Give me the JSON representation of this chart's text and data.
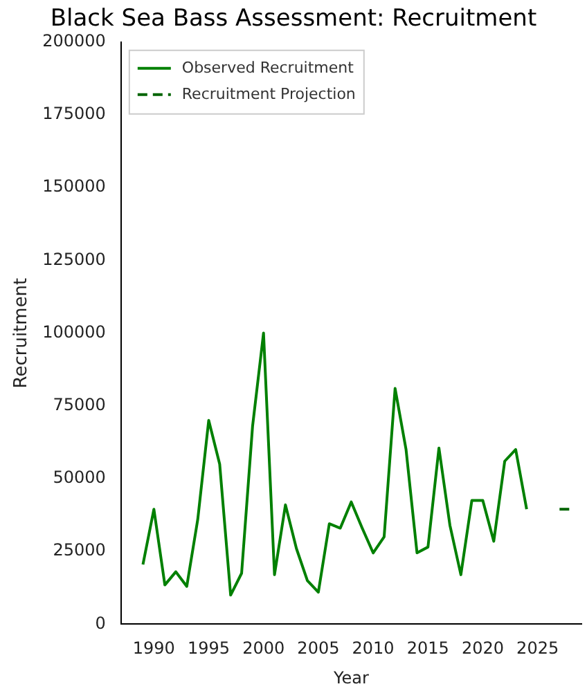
{
  "chart_data": {
    "type": "line",
    "title": "Black Sea Bass Assessment: Recruitment",
    "xlabel": "Year",
    "ylabel": "Recruitment",
    "series": [
      {
        "name": "Observed Recruitment",
        "color": "#008000",
        "line_style": "solid",
        "x": [
          1989,
          1990,
          1991,
          1992,
          1993,
          1994,
          1995,
          1996,
          1997,
          1998,
          1999,
          2000,
          2001,
          2002,
          2003,
          2004,
          2005,
          2006,
          2007,
          2008,
          2009,
          2010,
          2011,
          2012,
          2013,
          2014,
          2015,
          2016,
          2017,
          2018,
          2019,
          2020,
          2021,
          2022,
          2023,
          2024
        ],
        "values": [
          20500,
          39500,
          13500,
          18000,
          13000,
          36000,
          70000,
          55000,
          10000,
          17500,
          68000,
          100000,
          17000,
          41000,
          26000,
          15000,
          11000,
          34500,
          33000,
          42000,
          33000,
          24500,
          30000,
          81000,
          60000,
          24500,
          26500,
          60500,
          34000,
          17000,
          42500,
          42500,
          28500,
          56000,
          60000,
          39500
        ]
      },
      {
        "name": "Recruitment Projection",
        "color": "#006400",
        "line_style": "dashed",
        "x": [
          2027,
          2028
        ],
        "values": [
          39500,
          39500
        ]
      }
    ],
    "xlim": [
      1987,
      2029
    ],
    "xticks": [
      1990,
      1995,
      2000,
      2005,
      2010,
      2015,
      2020,
      2025
    ],
    "ylim": [
      0,
      200000
    ],
    "yticks": [
      0,
      25000,
      50000,
      75000,
      100000,
      125000,
      150000,
      175000,
      200000
    ],
    "grid": false,
    "legend": "top left",
    "marker": "none"
  }
}
